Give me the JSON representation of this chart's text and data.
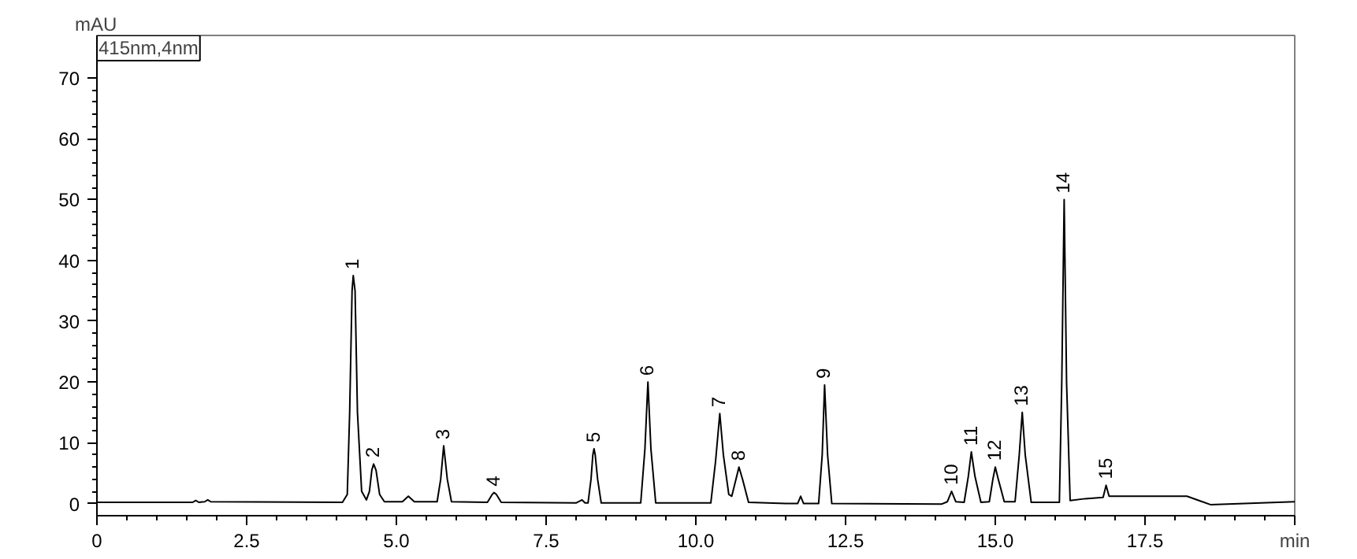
{
  "chart_data": {
    "type": "line",
    "xlabel": "min",
    "ylabel": "mAU",
    "annotations": [
      "415nm,4nm",
      {
        "text": "1",
        "x": 4.28,
        "y": 37.5
      },
      {
        "text": "2",
        "x": 4.62,
        "y": 6.5
      },
      {
        "text": "3",
        "x": 5.79,
        "y": 9.5
      },
      {
        "text": "4",
        "x": 6.63,
        "y": 1.8
      },
      {
        "text": "5",
        "x": 8.3,
        "y": 9
      },
      {
        "text": "6",
        "x": 9.2,
        "y": 20
      },
      {
        "text": "7",
        "x": 10.4,
        "y": 14.8
      },
      {
        "text": "8",
        "x": 10.72,
        "y": 6
      },
      {
        "text": "9",
        "x": 12.15,
        "y": 19.5
      },
      {
        "text": "10",
        "x": 14.27,
        "y": 2
      },
      {
        "text": "11",
        "x": 14.6,
        "y": 8.5
      },
      {
        "text": "12",
        "x": 15.0,
        "y": 6
      },
      {
        "text": "13",
        "x": 15.45,
        "y": 15
      },
      {
        "text": "14",
        "x": 16.15,
        "y": 50
      },
      {
        "text": "15",
        "x": 16.85,
        "y": 3
      }
    ],
    "xlim": [
      0,
      20
    ],
    "ylim": [
      -2,
      77
    ],
    "xticks": [
      0,
      {
        "value": 2.5,
        "label": "2.5"
      },
      {
        "value": 5,
        "label": "5.0"
      },
      {
        "value": 7.5,
        "label": "7.5"
      },
      {
        "value": 10,
        "label": "10.0"
      },
      {
        "value": 12.5,
        "label": "12.5"
      },
      {
        "value": 15,
        "label": "15.0"
      },
      {
        "value": 17.5,
        "label": "17.5"
      },
      {
        "value": 20,
        "label": null
      }
    ],
    "yticks": [
      0,
      10,
      20,
      30,
      40,
      50,
      60,
      70
    ],
    "grid": false,
    "marker": "none",
    "line_style": "solid",
    "series": [
      {
        "color": "#000000",
        "x": [
          0,
          1.6,
          1.65,
          1.7,
          1.8,
          1.85,
          1.9,
          4.1,
          4.18,
          4.22,
          4.26,
          4.28,
          4.31,
          4.35,
          4.42,
          4.5,
          4.55,
          4.59,
          4.62,
          4.66,
          4.72,
          4.8,
          5.1,
          5.2,
          5.3,
          5.68,
          5.74,
          5.79,
          5.85,
          5.92,
          6.52,
          6.6,
          6.63,
          6.67,
          6.75,
          8.0,
          8.1,
          8.15,
          8.2,
          8.25,
          8.28,
          8.3,
          8.32,
          8.36,
          8.42,
          9.08,
          9.15,
          9.2,
          9.25,
          9.33,
          10.25,
          10.33,
          10.4,
          10.46,
          10.55,
          10.6,
          10.67,
          10.72,
          10.78,
          10.88,
          11.5,
          11.7,
          11.75,
          11.8,
          12.05,
          12.11,
          12.15,
          12.2,
          12.27,
          14.1,
          14.2,
          14.27,
          14.34,
          14.48,
          14.55,
          14.6,
          14.66,
          14.76,
          14.9,
          14.96,
          15.0,
          15.05,
          15.15,
          15.33,
          15.4,
          15.45,
          15.5,
          15.6,
          16.07,
          16.11,
          16.15,
          16.19,
          16.25,
          16.5,
          16.8,
          16.85,
          16.9,
          17.3,
          18.2,
          18.6,
          20
        ],
        "values": [
          0.2,
          0.2,
          0.5,
          0.2,
          0.3,
          0.6,
          0.3,
          0.2,
          1.5,
          15,
          35,
          37.5,
          35,
          15,
          2,
          0.6,
          2,
          5.5,
          6.5,
          5.5,
          1.5,
          0.3,
          0.3,
          1.2,
          0.3,
          0.3,
          4,
          9.5,
          4,
          0.3,
          0.2,
          1.5,
          1.8,
          1.5,
          0.2,
          0.1,
          0.6,
          0.1,
          0.1,
          4,
          8,
          9,
          8,
          4,
          0.1,
          0.1,
          9,
          20,
          9,
          0.1,
          0.1,
          7,
          14.8,
          8,
          1.5,
          1.2,
          4,
          6,
          4,
          0.2,
          0,
          0,
          1.2,
          0,
          0,
          8,
          19.5,
          8,
          0,
          -0.1,
          0.3,
          2,
          0.3,
          0.2,
          4.5,
          8.5,
          4.5,
          0.2,
          0.3,
          4,
          6,
          4,
          0.3,
          0.3,
          8,
          15,
          8,
          0.2,
          0.2,
          20,
          50,
          20,
          0.5,
          0.8,
          1.0,
          3,
          1.2,
          1.2,
          1.2,
          -0.2,
          0.3
        ]
      }
    ]
  }
}
